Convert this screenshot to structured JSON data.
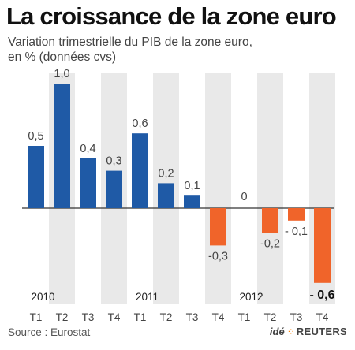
{
  "title": "La croissance de la zone euro",
  "subtitle_line1": "Variation trimestrielle  du PIB de la zone euro,",
  "subtitle_line2": "en % (données cvs)",
  "source": "Source : Eurostat",
  "brand_prefix": "idé",
  "brand_name": "REUTERS",
  "brand_icon": "reuters-dot-logo",
  "colors": {
    "positive": "#1f5aa6",
    "negative": "#f0642a",
    "band": "#e9e9e9",
    "zero_line": "#333333"
  },
  "chart_data": {
    "type": "bar",
    "categories": [
      "T1",
      "T2",
      "T3",
      "T4",
      "T1",
      "T2",
      "T3",
      "T4",
      "T1",
      "T2",
      "T3",
      "T4"
    ],
    "years": [
      {
        "label": "2010",
        "start_index": 0
      },
      {
        "label": "2011",
        "start_index": 4
      },
      {
        "label": "2012",
        "start_index": 8
      }
    ],
    "values": [
      0.5,
      1.0,
      0.4,
      0.3,
      0.6,
      0.2,
      0.1,
      -0.3,
      0,
      -0.2,
      -0.1,
      -0.6
    ],
    "data_labels": [
      "0,5",
      "1,0",
      "0,4",
      "0,3",
      "0,6",
      "0,2",
      "0,1",
      "-0,3",
      "0",
      "-0,2",
      "- 0,1",
      "- 0,6"
    ],
    "highlight_last": true,
    "ylim": [
      -0.6,
      1.0
    ],
    "grid": false,
    "alternating_bands": true
  }
}
